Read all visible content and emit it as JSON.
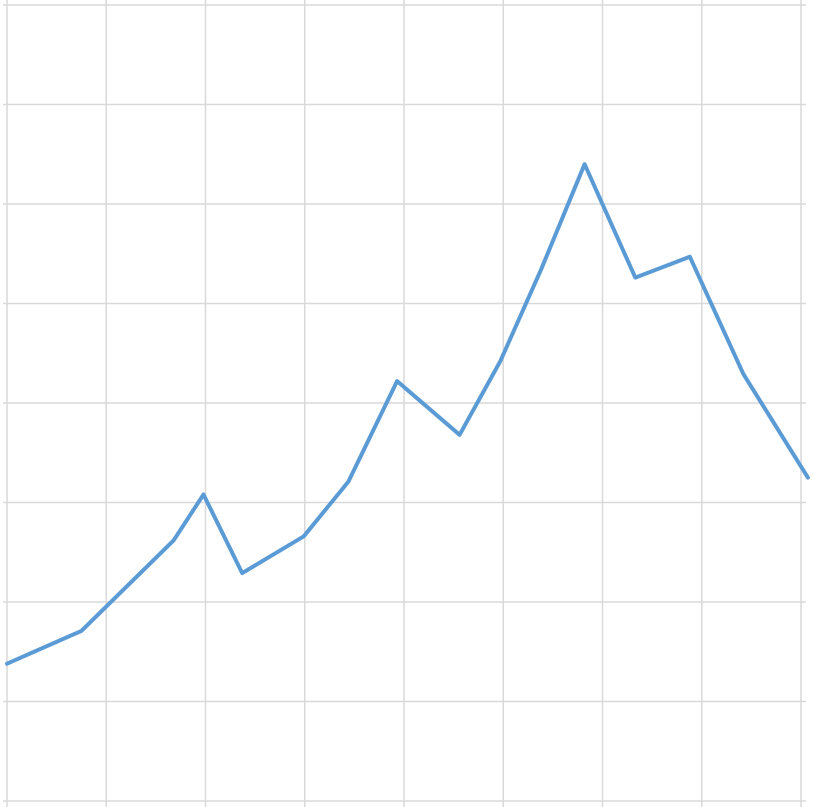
{
  "chart_data": {
    "type": "line",
    "title": "",
    "xlabel": "",
    "ylabel": "",
    "grid": true,
    "legend": "none",
    "xlim": [
      0,
      8
    ],
    "ylim": [
      0,
      8
    ],
    "series": [
      {
        "color": "#5b9bd5",
        "points": [
          [
            0.0,
            1.38
          ],
          [
            0.75,
            1.71
          ],
          [
            1.68,
            2.62
          ],
          [
            1.98,
            3.08
          ],
          [
            2.37,
            2.29
          ],
          [
            2.99,
            2.66
          ],
          [
            3.44,
            3.21
          ],
          [
            3.93,
            4.22
          ],
          [
            4.56,
            3.68
          ],
          [
            4.97,
            4.42
          ],
          [
            5.38,
            5.34
          ],
          [
            5.82,
            6.4
          ],
          [
            6.33,
            5.26
          ],
          [
            6.88,
            5.47
          ],
          [
            7.42,
            4.29
          ],
          [
            8.07,
            3.25
          ]
        ]
      }
    ]
  },
  "style": {
    "grid_color": "#d9d9d9",
    "background": "#ffffff"
  }
}
